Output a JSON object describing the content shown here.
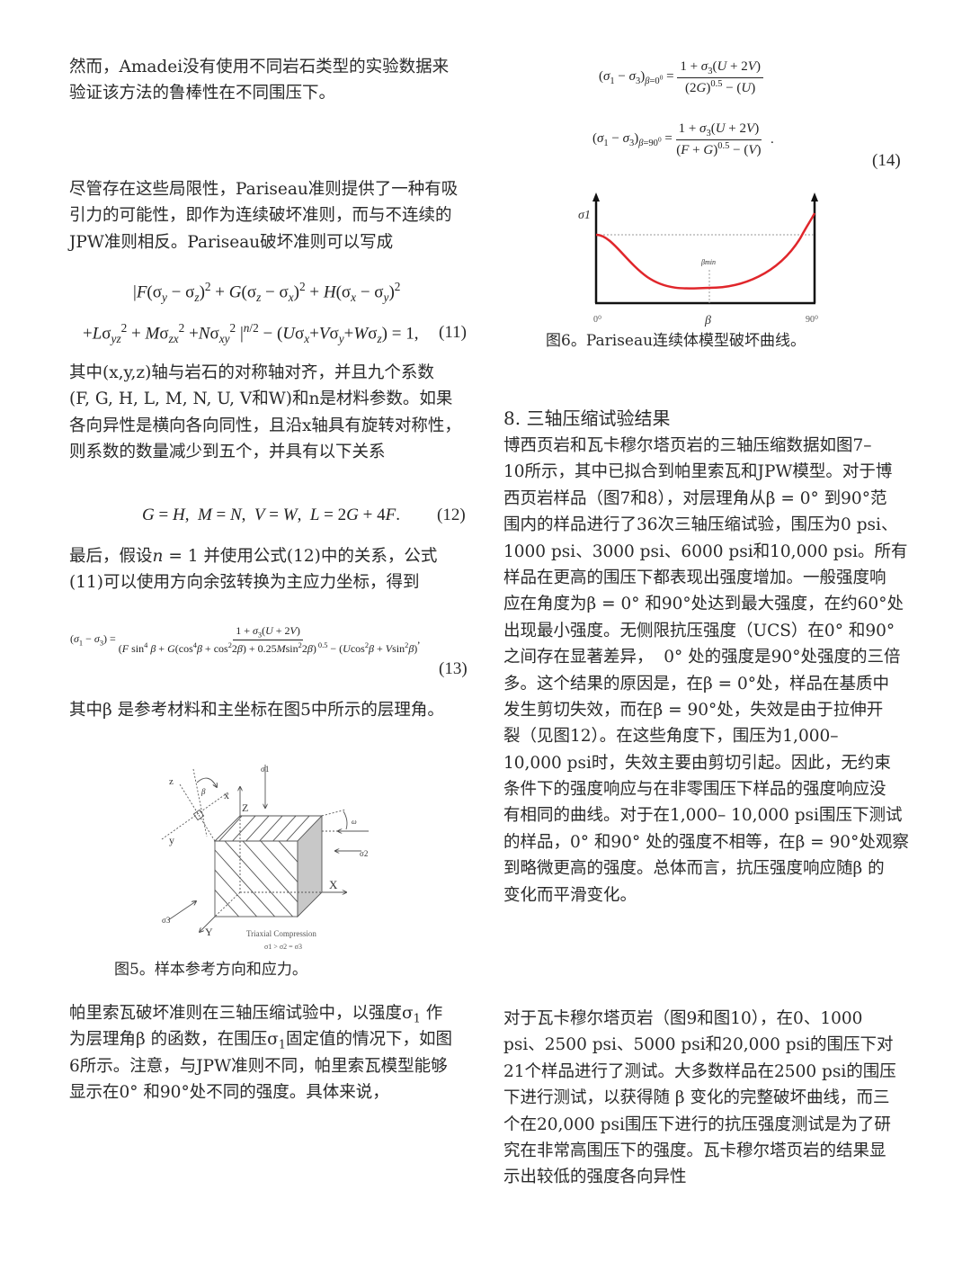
{
  "left": {
    "para1": [
      "然而，Amadei没有使用不同岩石类型的实验数据来",
      "验证该方法的鲁棒性在不同围压下。"
    ],
    "para2": [
      "尽管存在这些局限性，Pariseau准则提供了一种有吸",
      "引力的可能性，即作为连续破坏准则，而与不连续的",
      "JPW准则相反。Pariseau破坏准则可以写成"
    ],
    "eq11_line1": "|<i>F</i>(σ<sub><i>y</i></sub> − σ<sub><i>z</i></sub>)<sup>2</sup> + <i>G</i>(σ<sub><i>z</i></sub> − σ<sub><i>x</i></sub>)<sup>2</sup> + <i>H</i>(σ<sub><i>x</i></sub> − σ<sub><i>y</i></sub>)<sup>2</sup>",
    "eq11_line2": "+<i>L</i>σ<sub><i>yz</i></sub><sup>2</sup> + <i>M</i>σ<sub><i>zx</i></sub><sup>2</sup> +<i>N</i>σ<sub><i>xy</i></sub><sup>2</sup> |<sup><i>n</i>/2</sup> − (<i>U</i>σ<sub><i>x</i></sub>+<i>V</i>σ<sub><i>y</i></sub>+<i>W</i>σ<sub><i>z</i></sub>) = 1,",
    "eq11_num": "(11)",
    "para3": [
      "其中(x,y,z)轴与岩石的对称轴对齐，并且九个系数",
      "(F, G, H, L, M, N, U, V和W)和n是材料参数。如果",
      "各向异性是横向各向同性，且沿x轴具有旋转对称性，",
      "则系数的数量减少到五个，并具有以下关系"
    ],
    "eq12": "<i>G</i> = <i>H</i>, &nbsp;<i>M</i> = <i>N</i>, &nbsp;<i>V</i> = <i>W</i>, &nbsp;<i>L</i> = 2<i>G</i> + 4<i>F</i>.",
    "eq12_num": "(12)",
    "para4": [
      "最后，假设<i>n</i> = 1 并使用公式(12)中的关系，公式",
      "(11)可以使用方向余弦转换为主应力坐标，得到"
    ],
    "eq13_lhs": "(<i>σ</i><sub>1</sub> − <i>σ</i><sub>3</sub>) =",
    "eq13_num_text": "1 + <i>σ</i><sub>3</sub>(<i>U</i> + 2<i>V</i>)",
    "eq13_den_text": "(<i>F</i> sin<sup>4</sup> <i>β</i> + <i>G</i>(cos<sup>4</sup><i>β</i> + cos<sup>2</sup>2<i>β</i>) + 0.25<i>M</i>sin<sup>2</sup>2<i>β</i>)<sup> 0.5</sup> − (<i>U</i>cos<sup>2</sup><i>β</i> + <i>V</i>sin<sup>2</sup><i>β</i>)",
    "eq13_num": "(13)",
    "para5": [
      "其中β 是参考材料和主坐标在图5中所示的层理角。"
    ],
    "fig5": {
      "labels": {
        "z": "z",
        "beta": "β",
        "x": "x",
        "Z": "Z",
        "sigma1": "σ1",
        "omega": "ω",
        "y": "y",
        "sigma2": "σ2",
        "X": "X",
        "sigma3": "σ3",
        "Y": "Y",
        "title": "Triaxial Compression",
        "relation": "σ1 > σ2 = σ3"
      },
      "caption": "图5。样本参考方向和应力。"
    },
    "para6": [
      "帕里索瓦破坏准则在三轴压缩试验中，以强度σ<sub>1</sub> 作",
      "为层理角β 的函数，在围压σ<sub>1</sub>固定值的情况下，如图",
      "6所示。注意，与JPW准则不同，帕里索瓦模型能够",
      "显示在0° 和90°处不同的强度。具体来说，"
    ]
  },
  "right": {
    "eq14a_lhs": "(<i>σ</i><sub>1</sub> − <i>σ</i><sub>3</sub>)<sub><i>β</i>=0<sup>0</sup></sub> =",
    "eq14a_num": "1 + <i>σ</i><sub>3</sub>(<i>U</i> + 2<i>V</i>)",
    "eq14a_den": "(2<i>G</i>)<sup>0.5</sup> − (<i>U</i>)",
    "eq14b_lhs": "(<i>σ</i><sub>1</sub> − <i>σ</i><sub>3</sub>)<sub><i>β</i>=90<sup>0</sup></sub> =",
    "eq14b_num": "1 + <i>σ</i><sub>3</sub>(<i>U</i> + 2<i>V</i>)",
    "eq14b_den": "(<i>F</i> + <i>G</i>)<sup>0.5</sup> − (<i>V</i>)",
    "eq14_num": "(14)",
    "fig6": {
      "ylabel": "σ1",
      "xlabel": "β",
      "x_start": "0⁰",
      "x_end": "90⁰",
      "min_label": "βmin",
      "curve_color": "#e0262b",
      "caption": "图6。Pariseau连续体模型破坏曲线。"
    },
    "heading": "8. 三轴压缩试验结果",
    "para1": [
      "博西页岩和瓦卡穆尔塔页岩的三轴压缩数据如图7–",
      "10所示，其中已拟合到帕里索瓦和JPW模型。对于博",
      "西页岩样品（图7和8），对层理角从β = 0° 到90°范",
      "围内的样品进行了36次三轴压缩试验，围压为0 psi、",
      "1000 psi、3000 psi、6000 psi和10,000 psi。所有",
      "样品在更高的围压下都表现出强度增加。一般强度响",
      "应在角度为β = 0° 和90°处达到最大强度，在约60°处",
      "出现最小强度。无侧限抗压强度（UCS）在0° 和90°",
      "之间存在显著差异，&nbsp;&nbsp;0° 处的强度是90°处强度的三倍",
      "多。这个结果的原因是，在β = 0°处，样品在基质中",
      "发生剪切失效，而在β = 90°处，失效是由于拉伸开",
      "裂（见图12）。在这些角度下，围压为1,000–",
      "10,000 psi时，失效主要由剪切引起。因此，无约束",
      "条件下的强度响应与在非零围压下样品的强度响应没",
      "有相同的曲线。对于在1,000– 10,000 psi围压下测试",
      "的样品，0° 和90° 处的强度不相等，在β = 90°处观察",
      "到略微更高的强度。总体而言，抗压强度响应随β 的",
      "变化而平滑变化。"
    ],
    "para2": [
      "对于瓦卡穆尔塔页岩（图9和图10），在0、1000",
      "psi、2500 psi、5000 psi和20,000 psi的围压下对",
      "21个样品进行了测试。大多数样品在2500 psi的围压",
      "下进行测试，以获得随 β 变化的完整破坏曲线，而三",
      "个在20,000 psi围压下进行的抗压强度测试是为了研",
      "究在非常高围压下的强度。瓦卡穆尔塔页岩的结果显",
      "示出较低的强度各向异性"
    ]
  }
}
